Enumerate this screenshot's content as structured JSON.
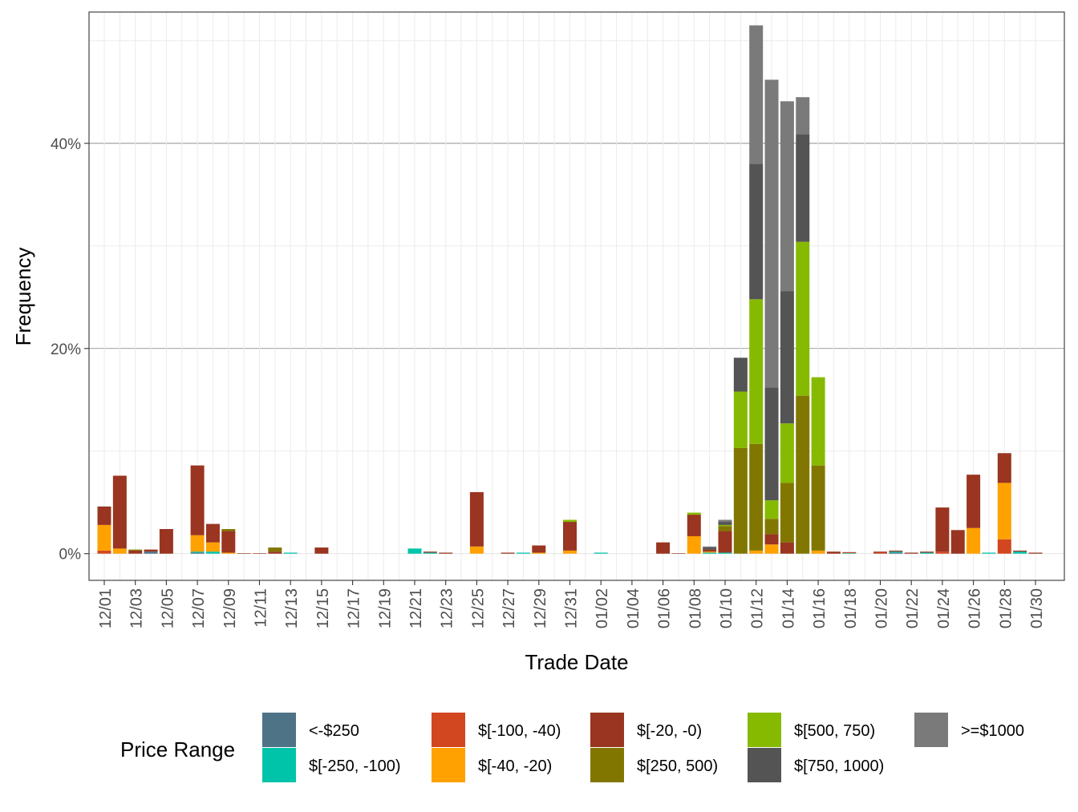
{
  "chart_data": {
    "type": "bar",
    "stacked": true,
    "xlabel": "Trade Date",
    "ylabel": "Frequency",
    "ylim": [
      -2.6,
      52.8
    ],
    "yticks": [
      0,
      20,
      40
    ],
    "ytick_labels": [
      "0%",
      "20%",
      "40%"
    ],
    "grid": true,
    "legend": {
      "title": "Price Range",
      "position": "bottom",
      "entries": [
        {
          "label": "<-$250",
          "color": "#4E7387"
        },
        {
          "label": "$[-250, -100)",
          "color": "#00C4AA"
        },
        {
          "label": "$[-100, -40)",
          "color": "#D24720"
        },
        {
          "label": "$[-40, -20)",
          "color": "#FFA100"
        },
        {
          "label": "$[-20, -0)",
          "color": "#993520"
        },
        {
          "label": "$[250, 500)",
          "color": "#817700"
        },
        {
          "label": "$[500, 750)",
          "color": "#86BA00"
        },
        {
          "label": "$[750, 1000)",
          "color": "#545454"
        },
        {
          "label": ">=$1000",
          "color": "#7A7A7A"
        }
      ]
    },
    "dates": [
      "12/01",
      "12/02",
      "12/03",
      "12/04",
      "12/05",
      "12/06",
      "12/07",
      "12/08",
      "12/09",
      "12/10",
      "12/11",
      "12/12",
      "12/13",
      "12/14",
      "12/15",
      "12/16",
      "12/17",
      "12/18",
      "12/19",
      "12/20",
      "12/21",
      "12/22",
      "12/23",
      "12/24",
      "12/25",
      "12/26",
      "12/27",
      "12/28",
      "12/29",
      "12/30",
      "12/31",
      "01/01",
      "01/02",
      "01/03",
      "01/04",
      "01/05",
      "01/06",
      "01/07",
      "01/08",
      "01/09",
      "01/10",
      "01/11",
      "01/12",
      "01/13",
      "01/14",
      "01/15",
      "01/16",
      "01/17",
      "01/18",
      "01/19",
      "01/20",
      "01/21",
      "01/22",
      "01/23",
      "01/24",
      "01/25",
      "01/26",
      "01/27",
      "01/28",
      "01/29",
      "01/30"
    ],
    "xtick_labels": [
      "12/01",
      "12/03",
      "12/05",
      "12/07",
      "12/09",
      "12/11",
      "12/13",
      "12/15",
      "12/17",
      "12/19",
      "12/21",
      "12/23",
      "12/25",
      "12/27",
      "12/29",
      "12/31",
      "01/02",
      "01/04",
      "01/06",
      "01/08",
      "01/10",
      "01/12",
      "01/14",
      "01/16",
      "01/18",
      "01/20",
      "01/22",
      "01/24",
      "01/26",
      "01/28",
      "01/30"
    ],
    "series": [
      {
        "name": "<-$250",
        "values": [
          0,
          0,
          0,
          0.2,
          0,
          0,
          0.1,
          0,
          0,
          0,
          0,
          0,
          0,
          0,
          0,
          0,
          0,
          0,
          0,
          0,
          0,
          0,
          0,
          0,
          0,
          0,
          0,
          0,
          0,
          0,
          0,
          0,
          0,
          0,
          0,
          0,
          0,
          0,
          0,
          0,
          0,
          0,
          0,
          0,
          0,
          0,
          0,
          0,
          0,
          0,
          0,
          0.1,
          0,
          0,
          0,
          0,
          0,
          0,
          0,
          0,
          0
        ]
      },
      {
        "name": "$[-250, -100)",
        "values": [
          0,
          0,
          0,
          0,
          0,
          0,
          0.1,
          0.2,
          0,
          0,
          0,
          0,
          0.1,
          0,
          0,
          0,
          0,
          0,
          0,
          0,
          0.5,
          0.1,
          0,
          0,
          0,
          0,
          0,
          0.1,
          0,
          0,
          0,
          0,
          0.1,
          0,
          0,
          0,
          0,
          0,
          0,
          0.1,
          0.1,
          0,
          0,
          0,
          0,
          0,
          0,
          0,
          0.05,
          0,
          0,
          0.1,
          0,
          0.1,
          0,
          0,
          0,
          0.1,
          0,
          0.2,
          0
        ]
      },
      {
        "name": "$[-100, -40)",
        "values": [
          0.3,
          0,
          0,
          0,
          0,
          0,
          0,
          0,
          0,
          0,
          0,
          0,
          0,
          0,
          0,
          0,
          0,
          0,
          0,
          0,
          0,
          0,
          0,
          0,
          0,
          0,
          0,
          0,
          0,
          0,
          0,
          0,
          0,
          0,
          0,
          0,
          0,
          0,
          0,
          0,
          0,
          0,
          0,
          0,
          0,
          0,
          0,
          0,
          0.05,
          0,
          0.1,
          0,
          0,
          0,
          0.2,
          0,
          0,
          0,
          1.4,
          0,
          0
        ]
      },
      {
        "name": "$[-40, -20)",
        "values": [
          2.5,
          0.5,
          0,
          0,
          0,
          0,
          1.6,
          0.9,
          0.1,
          0,
          0,
          0,
          0,
          0,
          0,
          0,
          0,
          0,
          0,
          0,
          0,
          0,
          0,
          0,
          0.7,
          0,
          0,
          0,
          0.1,
          0,
          0.3,
          0,
          0,
          0,
          0,
          0,
          0,
          0,
          1.7,
          0.1,
          0,
          0,
          0.3,
          0.9,
          0,
          0,
          0.3,
          0,
          0,
          0,
          0,
          0,
          0,
          0,
          0,
          0,
          2.5,
          0,
          5.5,
          0,
          0
        ]
      },
      {
        "name": "$[-20, -0)",
        "values": [
          1.8,
          7.1,
          0.3,
          0.2,
          2.4,
          0,
          6.8,
          1.8,
          2.1,
          0.05,
          0.05,
          0.2,
          0,
          0,
          0.6,
          0,
          0,
          0,
          0,
          0,
          0,
          0.1,
          0.1,
          0,
          5.3,
          0,
          0.1,
          0,
          0.7,
          0,
          2.8,
          0,
          0,
          0,
          0,
          0,
          1.1,
          0.05,
          2.1,
          0.2,
          2.1,
          0,
          0,
          1.0,
          1.1,
          0,
          0,
          0.2,
          0.05,
          0,
          0.1,
          0.1,
          0.1,
          0.1,
          4.3,
          2.3,
          5.2,
          0,
          2.9,
          0.1,
          0.1
        ]
      },
      {
        "name": "$[250, 500)",
        "values": [
          0,
          0,
          0.1,
          0,
          0,
          0,
          0,
          0,
          0.2,
          0,
          0,
          0.4,
          0,
          0,
          0,
          0,
          0,
          0,
          0,
          0,
          0,
          0,
          0,
          0,
          0,
          0,
          0,
          0,
          0,
          0,
          0,
          0,
          0,
          0,
          0,
          0,
          0,
          0,
          0,
          0,
          0.5,
          10.3,
          10.4,
          1.5,
          5.8,
          15.4,
          8.3,
          0,
          0,
          0,
          0,
          0,
          0,
          0,
          0,
          0,
          0,
          0,
          0,
          0,
          0
        ]
      },
      {
        "name": "$[500, 750)",
        "values": [
          0,
          0,
          0,
          0,
          0,
          0,
          0,
          0,
          0,
          0,
          0,
          0,
          0,
          0,
          0,
          0,
          0,
          0,
          0,
          0,
          0,
          0,
          0,
          0,
          0,
          0,
          0,
          0,
          0,
          0,
          0.2,
          0,
          0,
          0,
          0,
          0,
          0,
          0,
          0.2,
          0,
          0.1,
          5.5,
          14.1,
          1.8,
          5.8,
          15.0,
          8.6,
          0,
          0,
          0,
          0,
          0,
          0,
          0,
          0,
          0,
          0,
          0,
          0,
          0,
          0
        ]
      },
      {
        "name": "$[750, 1000)",
        "values": [
          0,
          0,
          0,
          0,
          0,
          0,
          0,
          0,
          0,
          0,
          0,
          0,
          0,
          0,
          0,
          0,
          0,
          0,
          0,
          0,
          0,
          0,
          0,
          0,
          0,
          0,
          0,
          0,
          0,
          0,
          0,
          0,
          0,
          0,
          0,
          0,
          0,
          0,
          0,
          0.2,
          0.3,
          3.3,
          13.2,
          11.0,
          12.9,
          10.5,
          0,
          0,
          0,
          0,
          0,
          0,
          0,
          0,
          0,
          0,
          0,
          0,
          0,
          0,
          0
        ]
      },
      {
        "name": ">=$1000",
        "values": [
          0,
          0,
          0,
          0,
          0,
          0,
          0,
          0,
          0,
          0,
          0,
          0,
          0,
          0,
          0,
          0,
          0,
          0,
          0,
          0,
          0,
          0,
          0,
          0,
          0,
          0,
          0,
          0,
          0,
          0,
          0,
          0,
          0,
          0,
          0,
          0,
          0,
          0,
          0,
          0.1,
          0.2,
          0,
          13.5,
          30.0,
          18.5,
          3.6,
          0,
          0,
          0,
          0,
          0,
          0,
          0,
          0,
          0,
          0,
          0,
          0,
          0,
          0,
          0
        ]
      }
    ]
  }
}
